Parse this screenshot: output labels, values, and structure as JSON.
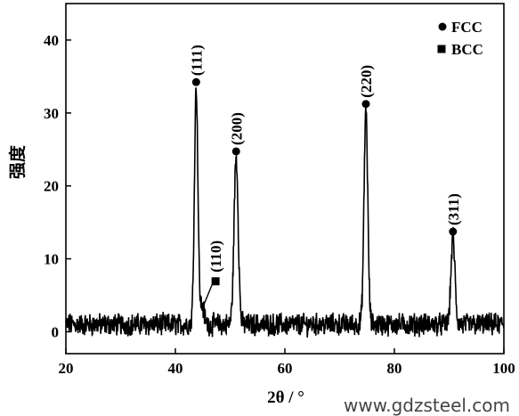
{
  "chart_data": {
    "type": "line",
    "xlabel": "2θ / °",
    "ylabel": "强度",
    "xlim": [
      20,
      100
    ],
    "ylim": [
      -3,
      45
    ],
    "x_ticks": [
      20,
      40,
      60,
      80,
      100
    ],
    "y_ticks": [
      0,
      10,
      20,
      30,
      40
    ],
    "grid": false,
    "legend": {
      "placement": "top-right",
      "entries": [
        {
          "label": "FCC",
          "marker": "circle"
        },
        {
          "label": "BCC",
          "marker": "square"
        }
      ]
    },
    "baseline": 1.0,
    "peaks": [
      {
        "x": 43.8,
        "y": 33.5,
        "label": "(111)",
        "phase": "FCC"
      },
      {
        "x": 44.9,
        "y": 3.5,
        "label": "(110)",
        "phase": "BCC"
      },
      {
        "x": 51.1,
        "y": 24.0,
        "label": "(200)",
        "phase": "FCC"
      },
      {
        "x": 74.8,
        "y": 30.5,
        "label": "(220)",
        "phase": "FCC"
      },
      {
        "x": 90.7,
        "y": 13.0,
        "label": "(311)",
        "phase": "FCC"
      }
    ]
  },
  "watermark": "www.gdzsteel.com"
}
